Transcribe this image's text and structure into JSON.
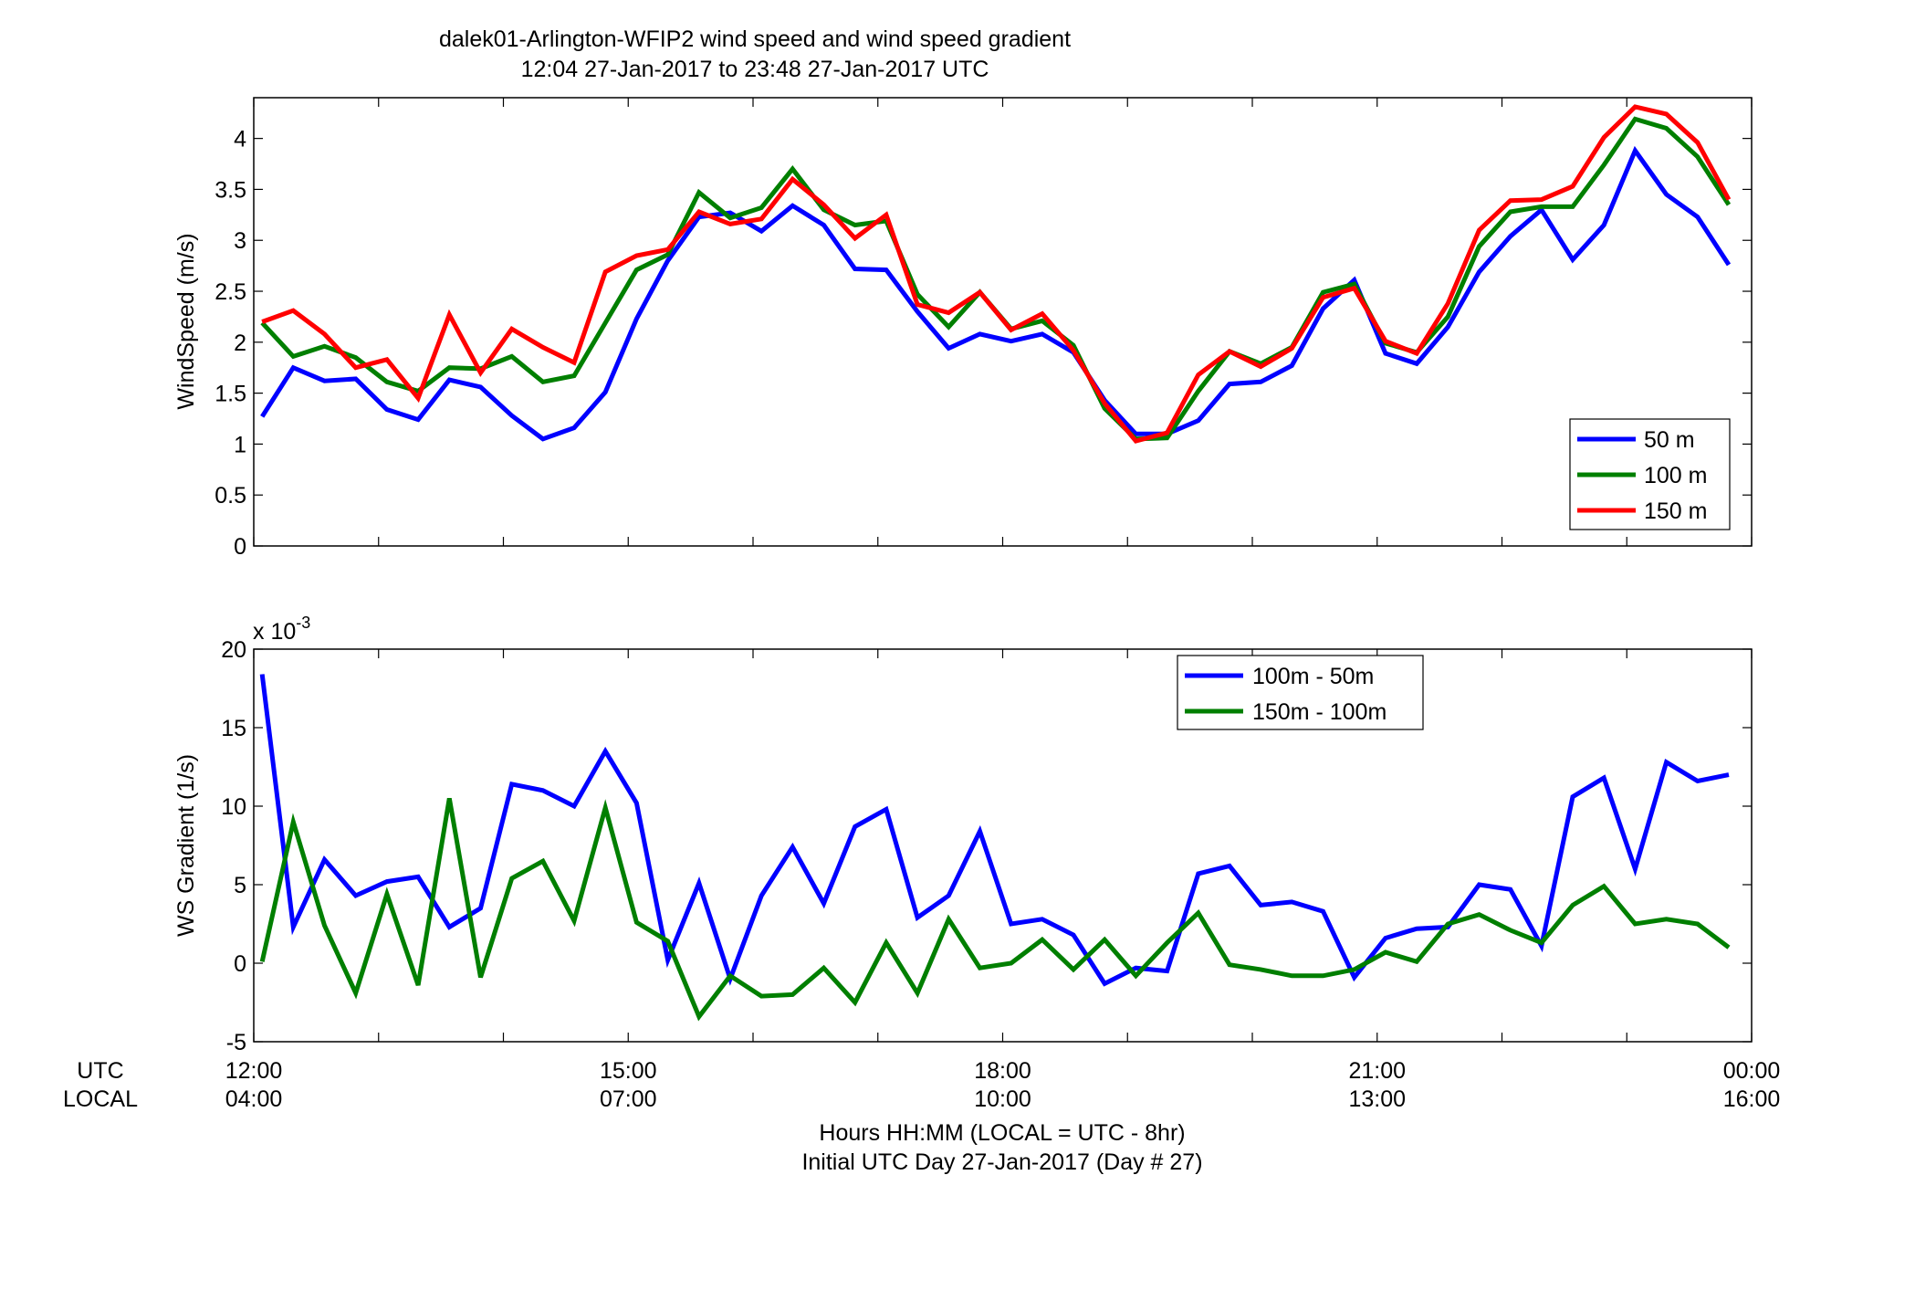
{
  "title": {
    "line1": "dalek01-Arlington-WFIP2  wind speed and wind speed gradient",
    "line2": "12:04 27-Jan-2017 to 23:48 27-Jan-2017  UTC"
  },
  "xaxis": {
    "utc_label": "UTC",
    "local_label": "LOCAL",
    "utc_ticks": [
      "12:00",
      "15:00",
      "18:00",
      "21:00",
      "00:00"
    ],
    "local_ticks": [
      "04:00",
      "07:00",
      "10:00",
      "13:00",
      "16:00"
    ],
    "xlabel_line1": "Hours HH:MM  (LOCAL = UTC - 8hr)",
    "xlabel_line2": "Initial UTC Day 27-Jan-2017 (Day # 27)"
  },
  "chart_data": [
    {
      "type": "line",
      "ylabel": "WindSpeed (m/s)",
      "xlim_hours_utc": [
        12,
        24
      ],
      "ylim": [
        0,
        4.4
      ],
      "yticks": [
        0,
        0.5,
        1,
        1.5,
        2,
        2.5,
        3,
        3.5,
        4
      ],
      "ytick_labels": [
        "0",
        "0.5",
        "1",
        "1.5",
        "2",
        "2.5",
        "3",
        "3.5",
        "4"
      ],
      "grid": false,
      "legend_position": "bottom-right",
      "colors": {
        "50 m": "#0000ff",
        "100 m": "#007f00",
        "150 m": "#ff0000"
      },
      "x_start_hour_utc": 12.067,
      "x_step_hours": 0.25,
      "series": [
        {
          "name": "50 m",
          "values": [
            1.27,
            1.75,
            1.62,
            1.64,
            1.34,
            1.24,
            1.63,
            1.56,
            1.28,
            1.05,
            1.16,
            1.51,
            2.23,
            2.8,
            3.23,
            3.27,
            3.09,
            3.34,
            3.15,
            2.72,
            2.71,
            2.3,
            1.94,
            2.08,
            2.01,
            2.08,
            1.9,
            1.43,
            1.1,
            1.1,
            1.23,
            1.59,
            1.61,
            1.77,
            2.33,
            2.61,
            1.89,
            1.79,
            2.15,
            2.69,
            3.04,
            3.3,
            2.81,
            3.15,
            3.88,
            3.45,
            3.23,
            2.76
          ]
        },
        {
          "name": "100 m",
          "values": [
            2.19,
            1.86,
            1.96,
            1.85,
            1.61,
            1.52,
            1.75,
            1.74,
            1.86,
            1.61,
            1.67,
            2.19,
            2.71,
            2.86,
            3.47,
            3.22,
            3.32,
            3.7,
            3.3,
            3.15,
            3.19,
            2.47,
            2.15,
            2.49,
            2.13,
            2.21,
            1.97,
            1.35,
            1.05,
            1.06,
            1.52,
            1.91,
            1.79,
            1.95,
            2.49,
            2.57,
            1.99,
            1.9,
            2.25,
            2.94,
            3.28,
            3.33,
            3.33,
            3.74,
            4.19,
            4.1,
            3.82,
            3.35
          ]
        },
        {
          "name": "150 m",
          "values": [
            2.2,
            2.31,
            2.08,
            1.75,
            1.83,
            1.45,
            2.27,
            1.7,
            2.13,
            1.95,
            1.8,
            2.69,
            2.85,
            2.91,
            3.28,
            3.16,
            3.21,
            3.6,
            3.35,
            3.02,
            3.25,
            2.37,
            2.29,
            2.49,
            2.12,
            2.28,
            1.92,
            1.4,
            1.03,
            1.11,
            1.68,
            1.91,
            1.76,
            1.94,
            2.44,
            2.53,
            2.01,
            1.89,
            2.38,
            3.1,
            3.39,
            3.4,
            3.53,
            4.01,
            4.31,
            4.24,
            3.96,
            3.4
          ]
        }
      ]
    },
    {
      "type": "line",
      "ylabel": "WS Gradient (1/s)",
      "y_exponent_label": "x 10",
      "y_exponent_power": "-3",
      "xlim_hours_utc": [
        12,
        24
      ],
      "ylim": [
        -5,
        20
      ],
      "yticks": [
        -5,
        0,
        5,
        10,
        15,
        20
      ],
      "ytick_labels": [
        "-5",
        "0",
        "5",
        "10",
        "15",
        "20"
      ],
      "grid": false,
      "legend_position": "top-center",
      "colors": {
        "100m - 50m": "#0000ff",
        "150m - 100m": "#007f00"
      },
      "x_start_hour_utc": 12.067,
      "x_step_hours": 0.25,
      "series": [
        {
          "name": "100m - 50m",
          "values": [
            18.4,
            2.3,
            6.6,
            4.3,
            5.2,
            5.5,
            2.3,
            3.5,
            11.4,
            11.0,
            10.0,
            13.5,
            10.2,
            0.2,
            5.1,
            -1.0,
            4.3,
            7.4,
            3.8,
            8.7,
            9.8,
            2.9,
            4.3,
            8.4,
            2.5,
            2.8,
            1.8,
            -1.3,
            -0.3,
            -0.5,
            5.7,
            6.2,
            3.7,
            3.9,
            3.3,
            -0.9,
            1.6,
            2.2,
            2.3,
            5.0,
            4.7,
            1.1,
            10.6,
            11.8,
            6.0,
            12.8,
            11.6,
            12.0
          ]
        },
        {
          "name": "150m - 100m",
          "values": [
            0.1,
            9.0,
            2.4,
            -1.9,
            4.4,
            -1.4,
            10.5,
            -0.9,
            5.4,
            6.5,
            2.7,
            9.9,
            2.6,
            1.4,
            -3.4,
            -0.8,
            -2.1,
            -2.0,
            -0.3,
            -2.5,
            1.3,
            -1.9,
            2.8,
            -0.3,
            0.0,
            1.5,
            -0.4,
            1.5,
            -0.8,
            1.3,
            3.2,
            -0.1,
            -0.4,
            -0.8,
            -0.8,
            -0.4,
            0.7,
            0.1,
            2.5,
            3.1,
            2.1,
            1.3,
            3.7,
            4.9,
            2.5,
            2.8,
            2.5,
            1.0
          ]
        }
      ]
    }
  ]
}
